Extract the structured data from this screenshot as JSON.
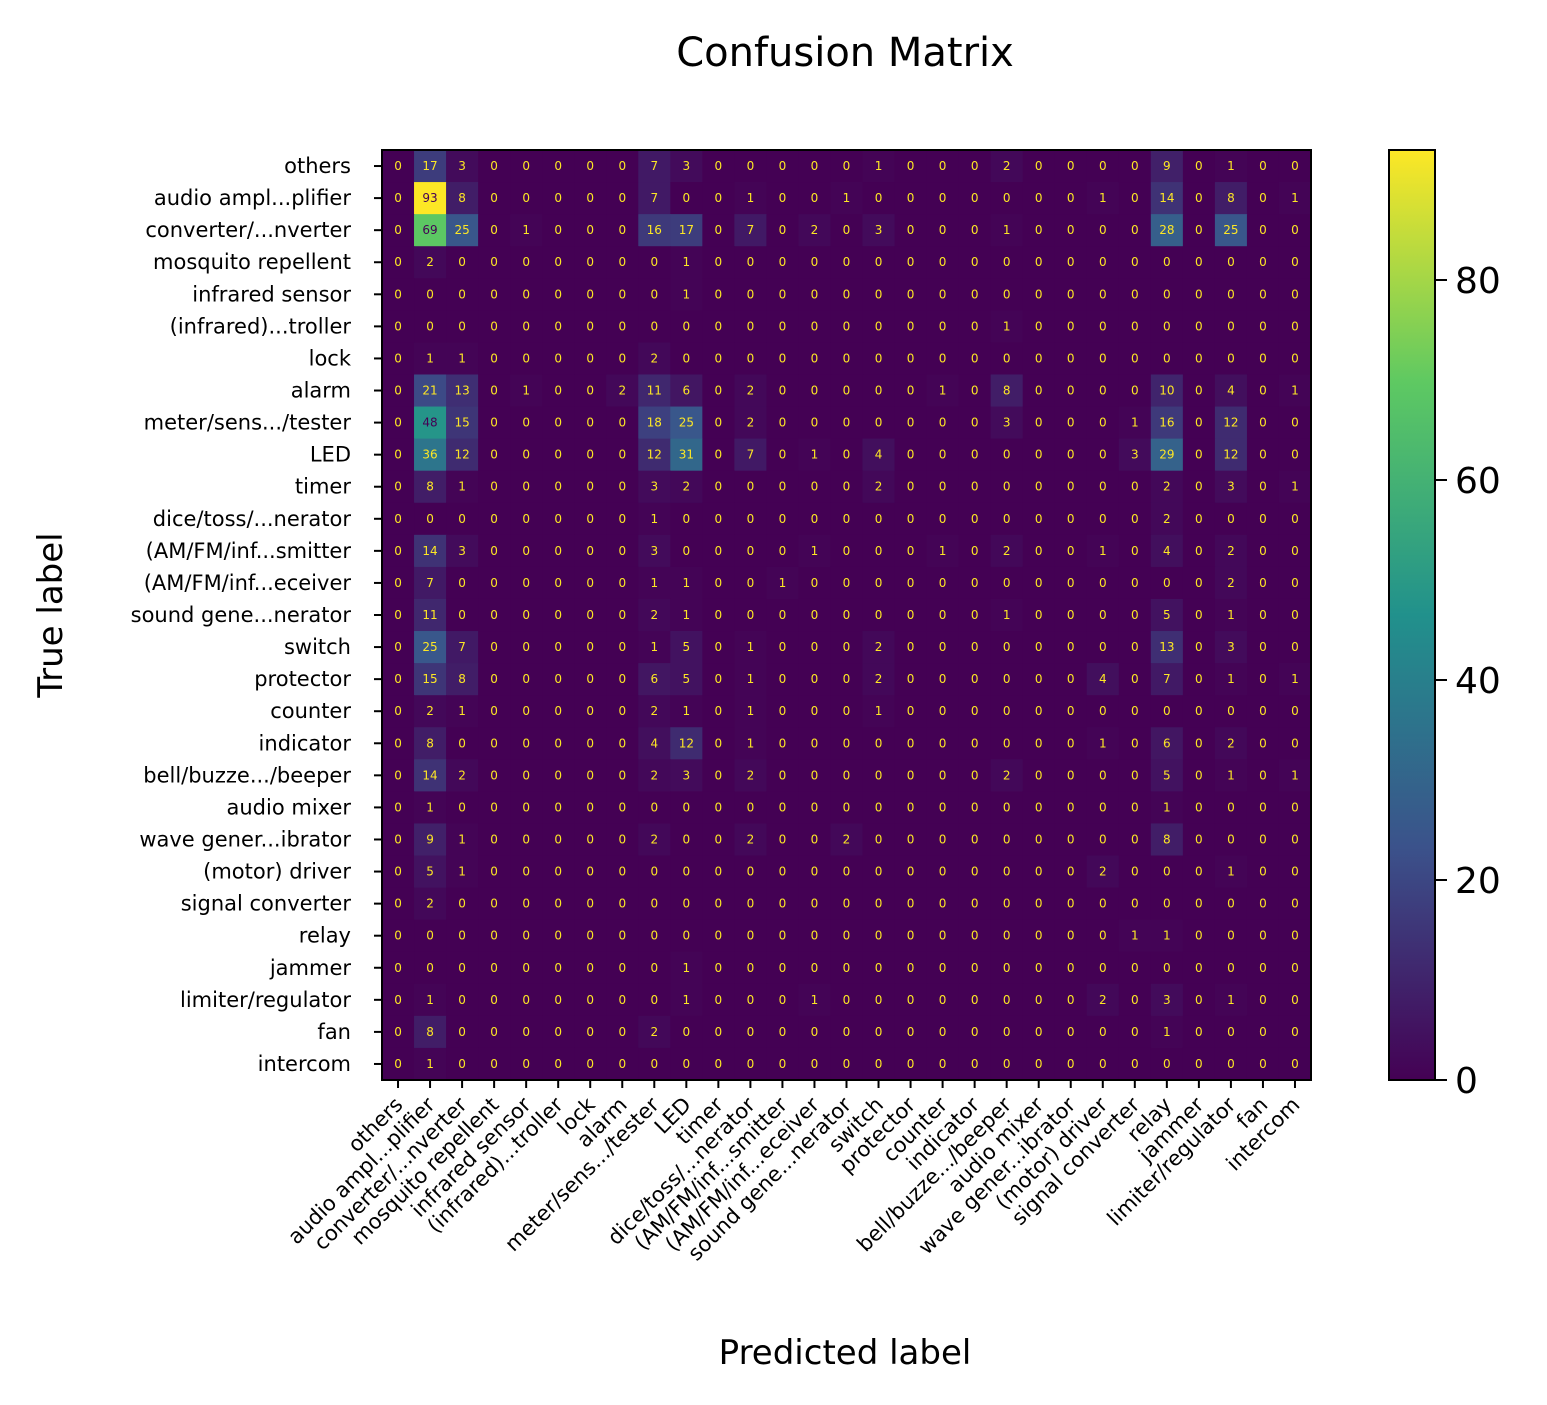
{
  "chart_data": {
    "type": "heatmap",
    "title": "Confusion Matrix",
    "xlabel": "Predicted label",
    "ylabel": "True label",
    "colormap": "viridis",
    "colors": [
      "#440154",
      "#3b528b",
      "#21918c",
      "#5ec962",
      "#fde725"
    ],
    "text_color_light": "#fde725",
    "text_color_dark": "#440154",
    "vmin": 0,
    "vmax": 93,
    "colorbar_ticks": [
      0,
      20,
      40,
      60,
      80
    ],
    "labels": [
      "others",
      "audio ampl...plifier",
      "converter/...nverter",
      "mosquito repellent",
      "infrared sensor",
      "(infrared)...troller",
      "lock",
      "alarm",
      "meter/sens.../tester",
      "LED",
      "timer",
      "dice/toss/...nerator",
      "(AM/FM/inf...smitter",
      "(AM/FM/inf...eceiver",
      "sound gene...nerator",
      "switch",
      "protector",
      "counter",
      "indicator",
      "bell/buzze.../beeper",
      "audio mixer",
      "wave gener...ibrator",
      "(motor) driver",
      "signal converter",
      "relay",
      "jammer",
      "limiter/regulator",
      "fan",
      "intercom"
    ],
    "matrix": [
      [
        0,
        17,
        3,
        0,
        0,
        0,
        0,
        0,
        7,
        3,
        0,
        0,
        0,
        0,
        0,
        1,
        0,
        0,
        0,
        2,
        0,
        0,
        0,
        0,
        9,
        0,
        1,
        0,
        0
      ],
      [
        0,
        93,
        8,
        0,
        0,
        0,
        0,
        0,
        7,
        0,
        0,
        1,
        0,
        0,
        1,
        0,
        0,
        0,
        0,
        0,
        0,
        0,
        1,
        0,
        14,
        0,
        8,
        0,
        1
      ],
      [
        0,
        69,
        25,
        0,
        1,
        0,
        0,
        0,
        16,
        17,
        0,
        7,
        0,
        2,
        0,
        3,
        0,
        0,
        0,
        1,
        0,
        0,
        0,
        0,
        28,
        0,
        25,
        0,
        0
      ],
      [
        0,
        2,
        0,
        0,
        0,
        0,
        0,
        0,
        0,
        1,
        0,
        0,
        0,
        0,
        0,
        0,
        0,
        0,
        0,
        0,
        0,
        0,
        0,
        0,
        0,
        0,
        0,
        0,
        0
      ],
      [
        0,
        0,
        0,
        0,
        0,
        0,
        0,
        0,
        0,
        1,
        0,
        0,
        0,
        0,
        0,
        0,
        0,
        0,
        0,
        0,
        0,
        0,
        0,
        0,
        0,
        0,
        0,
        0,
        0
      ],
      [
        0,
        0,
        0,
        0,
        0,
        0,
        0,
        0,
        0,
        0,
        0,
        0,
        0,
        0,
        0,
        0,
        0,
        0,
        0,
        1,
        0,
        0,
        0,
        0,
        0,
        0,
        0,
        0,
        0
      ],
      [
        0,
        1,
        1,
        0,
        0,
        0,
        0,
        0,
        2,
        0,
        0,
        0,
        0,
        0,
        0,
        0,
        0,
        0,
        0,
        0,
        0,
        0,
        0,
        0,
        0,
        0,
        0,
        0,
        0
      ],
      [
        0,
        21,
        13,
        0,
        1,
        0,
        0,
        2,
        11,
        6,
        0,
        2,
        0,
        0,
        0,
        0,
        0,
        1,
        0,
        8,
        0,
        0,
        0,
        0,
        10,
        0,
        4,
        0,
        1
      ],
      [
        0,
        48,
        15,
        0,
        0,
        0,
        0,
        0,
        18,
        25,
        0,
        2,
        0,
        0,
        0,
        0,
        0,
        0,
        0,
        3,
        0,
        0,
        0,
        1,
        16,
        0,
        12,
        0,
        0
      ],
      [
        0,
        36,
        12,
        0,
        0,
        0,
        0,
        0,
        12,
        31,
        0,
        7,
        0,
        1,
        0,
        4,
        0,
        0,
        0,
        0,
        0,
        0,
        0,
        3,
        29,
        0,
        12,
        0,
        0
      ],
      [
        0,
        8,
        1,
        0,
        0,
        0,
        0,
        0,
        3,
        2,
        0,
        0,
        0,
        0,
        0,
        2,
        0,
        0,
        0,
        0,
        0,
        0,
        0,
        0,
        2,
        0,
        3,
        0,
        1
      ],
      [
        0,
        0,
        0,
        0,
        0,
        0,
        0,
        0,
        1,
        0,
        0,
        0,
        0,
        0,
        0,
        0,
        0,
        0,
        0,
        0,
        0,
        0,
        0,
        0,
        2,
        0,
        0,
        0,
        0
      ],
      [
        0,
        14,
        3,
        0,
        0,
        0,
        0,
        0,
        3,
        0,
        0,
        0,
        0,
        1,
        0,
        0,
        0,
        1,
        0,
        2,
        0,
        0,
        1,
        0,
        4,
        0,
        2,
        0,
        0
      ],
      [
        0,
        7,
        0,
        0,
        0,
        0,
        0,
        0,
        1,
        1,
        0,
        0,
        1,
        0,
        0,
        0,
        0,
        0,
        0,
        0,
        0,
        0,
        0,
        0,
        0,
        0,
        2,
        0,
        0
      ],
      [
        0,
        11,
        0,
        0,
        0,
        0,
        0,
        0,
        2,
        1,
        0,
        0,
        0,
        0,
        0,
        0,
        0,
        0,
        0,
        1,
        0,
        0,
        0,
        0,
        5,
        0,
        1,
        0,
        0
      ],
      [
        0,
        25,
        7,
        0,
        0,
        0,
        0,
        0,
        1,
        5,
        0,
        1,
        0,
        0,
        0,
        2,
        0,
        0,
        0,
        0,
        0,
        0,
        0,
        0,
        13,
        0,
        3,
        0,
        0
      ],
      [
        0,
        15,
        8,
        0,
        0,
        0,
        0,
        0,
        6,
        5,
        0,
        1,
        0,
        0,
        0,
        2,
        0,
        0,
        0,
        0,
        0,
        0,
        4,
        0,
        7,
        0,
        1,
        0,
        1
      ],
      [
        0,
        2,
        1,
        0,
        0,
        0,
        0,
        0,
        2,
        1,
        0,
        1,
        0,
        0,
        0,
        1,
        0,
        0,
        0,
        0,
        0,
        0,
        0,
        0,
        0,
        0,
        0,
        0,
        0
      ],
      [
        0,
        8,
        0,
        0,
        0,
        0,
        0,
        0,
        4,
        12,
        0,
        1,
        0,
        0,
        0,
        0,
        0,
        0,
        0,
        0,
        0,
        0,
        1,
        0,
        6,
        0,
        2,
        0,
        0
      ],
      [
        0,
        14,
        2,
        0,
        0,
        0,
        0,
        0,
        2,
        3,
        0,
        2,
        0,
        0,
        0,
        0,
        0,
        0,
        0,
        2,
        0,
        0,
        0,
        0,
        5,
        0,
        1,
        0,
        1
      ],
      [
        0,
        1,
        0,
        0,
        0,
        0,
        0,
        0,
        0,
        0,
        0,
        0,
        0,
        0,
        0,
        0,
        0,
        0,
        0,
        0,
        0,
        0,
        0,
        0,
        1,
        0,
        0,
        0,
        0
      ],
      [
        0,
        9,
        1,
        0,
        0,
        0,
        0,
        0,
        2,
        0,
        0,
        2,
        0,
        0,
        2,
        0,
        0,
        0,
        0,
        0,
        0,
        0,
        0,
        0,
        8,
        0,
        0,
        0,
        0
      ],
      [
        0,
        5,
        1,
        0,
        0,
        0,
        0,
        0,
        0,
        0,
        0,
        0,
        0,
        0,
        0,
        0,
        0,
        0,
        0,
        0,
        0,
        0,
        2,
        0,
        0,
        0,
        1,
        0,
        0
      ],
      [
        0,
        2,
        0,
        0,
        0,
        0,
        0,
        0,
        0,
        0,
        0,
        0,
        0,
        0,
        0,
        0,
        0,
        0,
        0,
        0,
        0,
        0,
        0,
        0,
        0,
        0,
        0,
        0,
        0
      ],
      [
        0,
        0,
        0,
        0,
        0,
        0,
        0,
        0,
        0,
        0,
        0,
        0,
        0,
        0,
        0,
        0,
        0,
        0,
        0,
        0,
        0,
        0,
        0,
        1,
        1,
        0,
        0,
        0,
        0
      ],
      [
        0,
        0,
        0,
        0,
        0,
        0,
        0,
        0,
        0,
        1,
        0,
        0,
        0,
        0,
        0,
        0,
        0,
        0,
        0,
        0,
        0,
        0,
        0,
        0,
        0,
        0,
        0,
        0,
        0
      ],
      [
        0,
        1,
        0,
        0,
        0,
        0,
        0,
        0,
        0,
        1,
        0,
        0,
        0,
        1,
        0,
        0,
        0,
        0,
        0,
        0,
        0,
        0,
        2,
        0,
        3,
        0,
        1,
        0,
        0
      ],
      [
        0,
        8,
        0,
        0,
        0,
        0,
        0,
        0,
        2,
        0,
        0,
        0,
        0,
        0,
        0,
        0,
        0,
        0,
        0,
        0,
        0,
        0,
        0,
        0,
        1,
        0,
        0,
        0,
        0
      ],
      [
        0,
        1,
        0,
        0,
        0,
        0,
        0,
        0,
        0,
        0,
        0,
        0,
        0,
        0,
        0,
        0,
        0,
        0,
        0,
        0,
        0,
        0,
        0,
        0,
        0,
        0,
        0,
        0,
        0
      ]
    ]
  }
}
